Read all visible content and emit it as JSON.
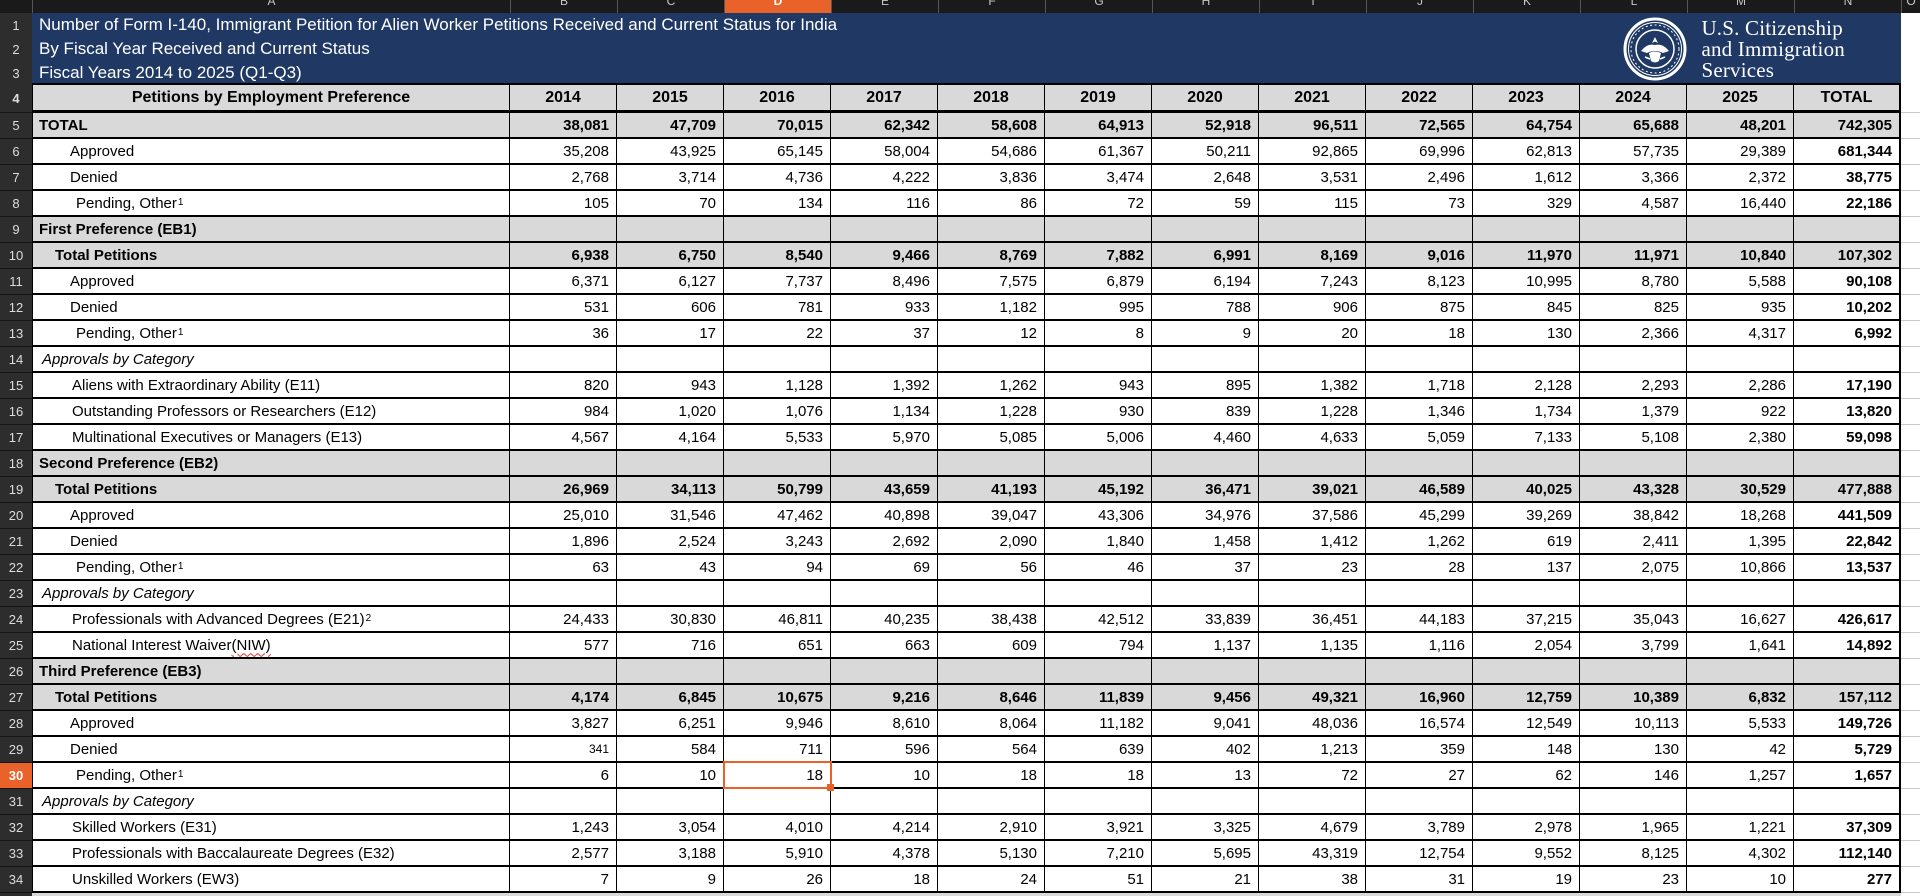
{
  "colors": {
    "accent_orange": "#E8622A",
    "navy": "#1F3864",
    "header_gray": "#D9D9D9",
    "gutter_dark": "#2D2D2D"
  },
  "column_strip": {
    "letters": [
      "A",
      "B",
      "C",
      "D",
      "E",
      "F",
      "G",
      "H",
      "I",
      "J",
      "K",
      "L",
      "M",
      "N",
      "O"
    ],
    "highlighted": "D"
  },
  "gutter": {
    "header_rows": [
      "1",
      "2",
      "3"
    ],
    "row4": "4"
  },
  "title": {
    "line1": "Number of Form I-140, Immigrant Petition for Alien Worker Petitions Received and Current Status for India",
    "line2": "By Fiscal Year Received and Current Status",
    "line3": "Fiscal Years 2014 to 2025 (Q1-Q3)"
  },
  "logo": {
    "line1": "U.S. Citizenship",
    "line2": "and Immigration",
    "line3": "Services"
  },
  "selection": {
    "row_number": 30,
    "col_index": 2,
    "column_letter": "D",
    "column_label": "2016"
  },
  "table": {
    "label_header": "Petitions by Employment Preference",
    "columns": [
      "2014",
      "2015",
      "2016",
      "2017",
      "2018",
      "2019",
      "2020",
      "2021",
      "2022",
      "2023",
      "2024",
      "2025",
      "TOTAL"
    ],
    "rows": [
      {
        "num": 5,
        "style": "grand",
        "label": "TOTAL",
        "values": [
          "38,081",
          "47,709",
          "70,015",
          "62,342",
          "58,608",
          "64,913",
          "52,918",
          "96,511",
          "72,565",
          "64,754",
          "65,688",
          "48,201",
          "742,305"
        ]
      },
      {
        "num": 6,
        "style": "sub",
        "label": "Approved",
        "values": [
          "35,208",
          "43,925",
          "65,145",
          "58,004",
          "54,686",
          "61,367",
          "50,211",
          "92,865",
          "69,996",
          "62,813",
          "57,735",
          "29,389",
          "681,344"
        ]
      },
      {
        "num": 7,
        "style": "sub",
        "label": "Denied",
        "values": [
          "2,768",
          "3,714",
          "4,736",
          "4,222",
          "3,836",
          "3,474",
          "2,648",
          "3,531",
          "2,496",
          "1,612",
          "3,366",
          "2,372",
          "38,775"
        ]
      },
      {
        "num": 8,
        "style": "pending",
        "label": "Pending, Other",
        "sup": "1",
        "values": [
          "105",
          "70",
          "134",
          "116",
          "86",
          "72",
          "59",
          "115",
          "73",
          "329",
          "4,587",
          "16,440",
          "22,186"
        ]
      },
      {
        "num": 9,
        "style": "section",
        "label": "First Preference (EB1)",
        "values": []
      },
      {
        "num": 10,
        "style": "total",
        "label": "Total Petitions",
        "values": [
          "6,938",
          "6,750",
          "8,540",
          "9,466",
          "8,769",
          "7,882",
          "6,991",
          "8,169",
          "9,016",
          "11,970",
          "11,971",
          "10,840",
          "107,302"
        ]
      },
      {
        "num": 11,
        "style": "sub",
        "label": "Approved",
        "values": [
          "6,371",
          "6,127",
          "7,737",
          "8,496",
          "7,575",
          "6,879",
          "6,194",
          "7,243",
          "8,123",
          "10,995",
          "8,780",
          "5,588",
          "90,108"
        ]
      },
      {
        "num": 12,
        "style": "sub",
        "label": "Denied",
        "values": [
          "531",
          "606",
          "781",
          "933",
          "1,182",
          "995",
          "788",
          "906",
          "875",
          "845",
          "825",
          "935",
          "10,202"
        ]
      },
      {
        "num": 13,
        "style": "pending",
        "label": "Pending, Other",
        "sup": "1",
        "values": [
          "36",
          "17",
          "22",
          "37",
          "12",
          "8",
          "9",
          "20",
          "18",
          "130",
          "2,366",
          "4,317",
          "6,992"
        ]
      },
      {
        "num": 14,
        "style": "cathead",
        "label": "Approvals by Category",
        "values": []
      },
      {
        "num": 15,
        "style": "cat",
        "label": "Aliens with Extraordinary Ability (E11)",
        "values": [
          "820",
          "943",
          "1,128",
          "1,392",
          "1,262",
          "943",
          "895",
          "1,382",
          "1,718",
          "2,128",
          "2,293",
          "2,286",
          "17,190"
        ]
      },
      {
        "num": 16,
        "style": "cat",
        "label": "Outstanding Professors or Researchers (E12)",
        "values": [
          "984",
          "1,020",
          "1,076",
          "1,134",
          "1,228",
          "930",
          "839",
          "1,228",
          "1,346",
          "1,734",
          "1,379",
          "922",
          "13,820"
        ]
      },
      {
        "num": 17,
        "style": "cat",
        "label": "Multinational Executives or Managers (E13)",
        "values": [
          "4,567",
          "4,164",
          "5,533",
          "5,970",
          "5,085",
          "5,006",
          "4,460",
          "4,633",
          "5,059",
          "7,133",
          "5,108",
          "2,380",
          "59,098"
        ]
      },
      {
        "num": 18,
        "style": "section",
        "label": "Second Preference (EB2)",
        "values": []
      },
      {
        "num": 19,
        "style": "total",
        "label": "Total Petitions",
        "values": [
          "26,969",
          "34,113",
          "50,799",
          "43,659",
          "41,193",
          "45,192",
          "36,471",
          "39,021",
          "46,589",
          "40,025",
          "43,328",
          "30,529",
          "477,888"
        ]
      },
      {
        "num": 20,
        "style": "sub",
        "label": "Approved",
        "values": [
          "25,010",
          "31,546",
          "47,462",
          "40,898",
          "39,047",
          "43,306",
          "34,976",
          "37,586",
          "45,299",
          "39,269",
          "38,842",
          "18,268",
          "441,509"
        ]
      },
      {
        "num": 21,
        "style": "sub",
        "label": "Denied",
        "values": [
          "1,896",
          "2,524",
          "3,243",
          "2,692",
          "2,090",
          "1,840",
          "1,458",
          "1,412",
          "1,262",
          "619",
          "2,411",
          "1,395",
          "22,842"
        ]
      },
      {
        "num": 22,
        "style": "pending",
        "label": "Pending, Other",
        "sup": "1",
        "values": [
          "63",
          "43",
          "94",
          "69",
          "56",
          "46",
          "37",
          "23",
          "28",
          "137",
          "2,075",
          "10,866",
          "13,537"
        ]
      },
      {
        "num": 23,
        "style": "cathead",
        "label": "Approvals by Category",
        "values": []
      },
      {
        "num": 24,
        "style": "cat",
        "label": "Professionals with Advanced Degrees (E21)",
        "sup": "2",
        "values": [
          "24,433",
          "30,830",
          "46,811",
          "40,235",
          "38,438",
          "42,512",
          "33,839",
          "36,451",
          "44,183",
          "37,215",
          "35,043",
          "16,627",
          "426,617"
        ]
      },
      {
        "num": 25,
        "style": "cat",
        "label": "National Interest Waiver ",
        "squiggle": "(NIW)",
        "values": [
          "577",
          "716",
          "651",
          "663",
          "609",
          "794",
          "1,137",
          "1,135",
          "1,116",
          "2,054",
          "3,799",
          "1,641",
          "14,892"
        ]
      },
      {
        "num": 26,
        "style": "section",
        "label": "Third Preference (EB3)",
        "values": []
      },
      {
        "num": 27,
        "style": "total",
        "label": "Total Petitions",
        "values": [
          "4,174",
          "6,845",
          "10,675",
          "9,216",
          "8,646",
          "11,839",
          "9,456",
          "49,321",
          "16,960",
          "12,759",
          "10,389",
          "6,832",
          "157,112"
        ]
      },
      {
        "num": 28,
        "style": "sub",
        "label": "Approved",
        "values": [
          "3,827",
          "6,251",
          "9,946",
          "8,610",
          "8,064",
          "11,182",
          "9,041",
          "48,036",
          "16,574",
          "12,549",
          "10,113",
          "5,533",
          "149,726"
        ]
      },
      {
        "num": 29,
        "style": "sub",
        "label": "Denied",
        "small_cells": [
          0
        ],
        "values": [
          "341",
          "584",
          "711",
          "596",
          "564",
          "639",
          "402",
          "1,213",
          "359",
          "148",
          "130",
          "42",
          "5,729"
        ]
      },
      {
        "num": 30,
        "style": "pending",
        "label": "Pending, Other",
        "sup": "1",
        "values": [
          "6",
          "10",
          "18",
          "10",
          "18",
          "18",
          "13",
          "72",
          "27",
          "62",
          "146",
          "1,257",
          "1,657"
        ]
      },
      {
        "num": 31,
        "style": "cathead",
        "label": "Approvals by Category",
        "values": []
      },
      {
        "num": 32,
        "style": "cat",
        "label": "Skilled Workers (E31)",
        "values": [
          "1,243",
          "3,054",
          "4,010",
          "4,214",
          "2,910",
          "3,921",
          "3,325",
          "4,679",
          "3,789",
          "2,978",
          "1,965",
          "1,221",
          "37,309"
        ]
      },
      {
        "num": 33,
        "style": "cat",
        "label": "Professionals with Baccalaureate Degrees (E32)",
        "values": [
          "2,577",
          "3,188",
          "5,910",
          "4,378",
          "5,130",
          "7,210",
          "5,695",
          "43,319",
          "12,754",
          "9,552",
          "8,125",
          "4,302",
          "112,140"
        ]
      },
      {
        "num": 34,
        "style": "cat",
        "label": "Unskilled Workers (EW3)",
        "values": [
          "7",
          "9",
          "26",
          "18",
          "24",
          "51",
          "21",
          "38",
          "31",
          "19",
          "23",
          "10",
          "277"
        ]
      }
    ]
  }
}
